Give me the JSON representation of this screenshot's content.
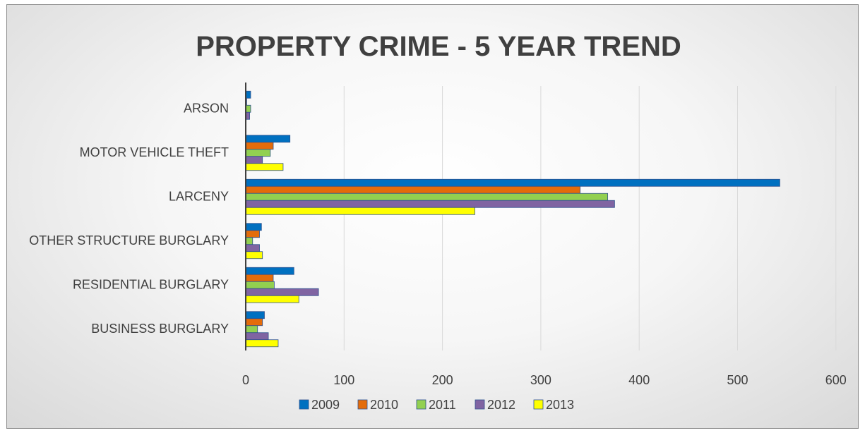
{
  "chart_data": {
    "type": "bar",
    "orientation": "horizontal",
    "title": "PROPERTY CRIME - 5 YEAR TREND",
    "categories": [
      "ARSON",
      "MOTOR VEHICLE THEFT",
      "LARCENY",
      "OTHER STRUCTURE BURGLARY",
      "RESIDENTIAL BURGLARY",
      "BUSINESS BURGLARY"
    ],
    "series": [
      {
        "name": "2009",
        "color": "#0070c0",
        "values": [
          5,
          45,
          543,
          16,
          49,
          19
        ]
      },
      {
        "name": "2010",
        "color": "#e46c0a",
        "values": [
          1,
          28,
          340,
          14,
          28,
          17
        ]
      },
      {
        "name": "2011",
        "color": "#92d050",
        "values": [
          5,
          25,
          368,
          7,
          29,
          12
        ]
      },
      {
        "name": "2012",
        "color": "#8064a2",
        "values": [
          4,
          17,
          375,
          14,
          74,
          23
        ]
      },
      {
        "name": "2013",
        "color": "#ffff00",
        "values": [
          0,
          38,
          233,
          17,
          54,
          33
        ]
      }
    ],
    "xlim": [
      0,
      600
    ],
    "xticks": [
      "0",
      "100",
      "200",
      "300",
      "400",
      "500",
      "600"
    ],
    "grid": true,
    "legend_position": "bottom"
  }
}
